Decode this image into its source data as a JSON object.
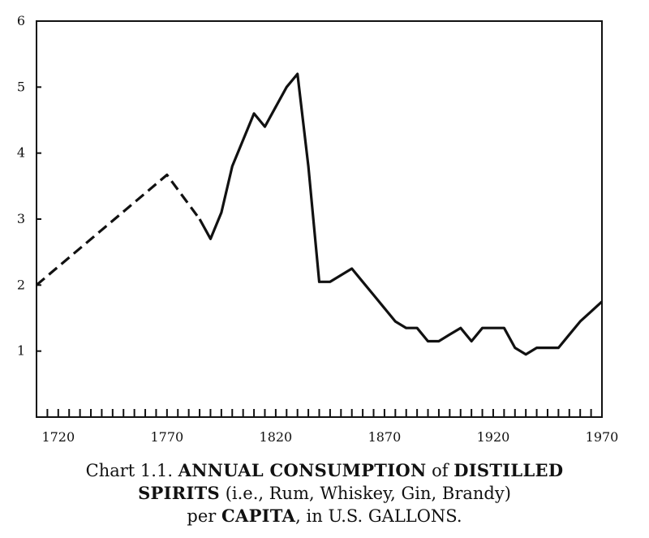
{
  "chart_data": {
    "type": "line",
    "x_ticks": [
      "1720",
      "1770",
      "1820",
      "1870",
      "1920",
      "1970"
    ],
    "y_ticks": [
      "1",
      "2",
      "3",
      "4",
      "5",
      "6"
    ],
    "xlim": [
      1710,
      1970
    ],
    "ylim": [
      0,
      6
    ],
    "x_minor_step": 5,
    "grid": false,
    "legend": "none",
    "series": [
      {
        "style": "dashed",
        "x": [
          1710,
          1770,
          1785
        ],
        "y": [
          2.0,
          3.67,
          3.0
        ]
      },
      {
        "style": "solid",
        "x": [
          1785,
          1790,
          1795,
          1800,
          1805,
          1810,
          1815,
          1820,
          1825,
          1830,
          1835,
          1840,
          1845,
          1850,
          1855,
          1860,
          1865,
          1870,
          1875,
          1880,
          1885,
          1890,
          1895,
          1900,
          1905,
          1910,
          1915,
          1920,
          1925,
          1930,
          1935,
          1940,
          1945,
          1950,
          1955,
          1960,
          1965,
          1970
        ],
        "y": [
          3.0,
          2.7,
          3.1,
          3.8,
          4.2,
          4.6,
          4.4,
          4.7,
          5.0,
          5.2,
          3.8,
          2.05,
          2.05,
          2.15,
          2.25,
          2.05,
          1.85,
          1.65,
          1.45,
          1.35,
          1.35,
          1.15,
          1.15,
          1.25,
          1.35,
          1.15,
          1.35,
          1.35,
          1.35,
          1.05,
          0.95,
          1.05,
          1.05,
          1.05,
          1.25,
          1.45,
          1.6,
          1.75
        ]
      }
    ],
    "title_lines": [
      [
        {
          "t": "Chart 1.1. ",
          "b": false
        },
        {
          "t": "ANNUAL CONSUMPTION",
          "b": true
        },
        {
          "t": " of ",
          "b": false
        },
        {
          "t": "DISTILLED",
          "b": true
        }
      ],
      [
        {
          "t": "SPIRITS",
          "b": true
        },
        {
          "t": " (i.e., Rum, Whiskey, Gin, Brandy)",
          "b": false
        }
      ],
      [
        {
          "t": "per ",
          "b": false
        },
        {
          "t": "CAPITA",
          "b": true
        },
        {
          "t": ", in U.S. GALLONS.",
          "b": false
        }
      ]
    ]
  }
}
